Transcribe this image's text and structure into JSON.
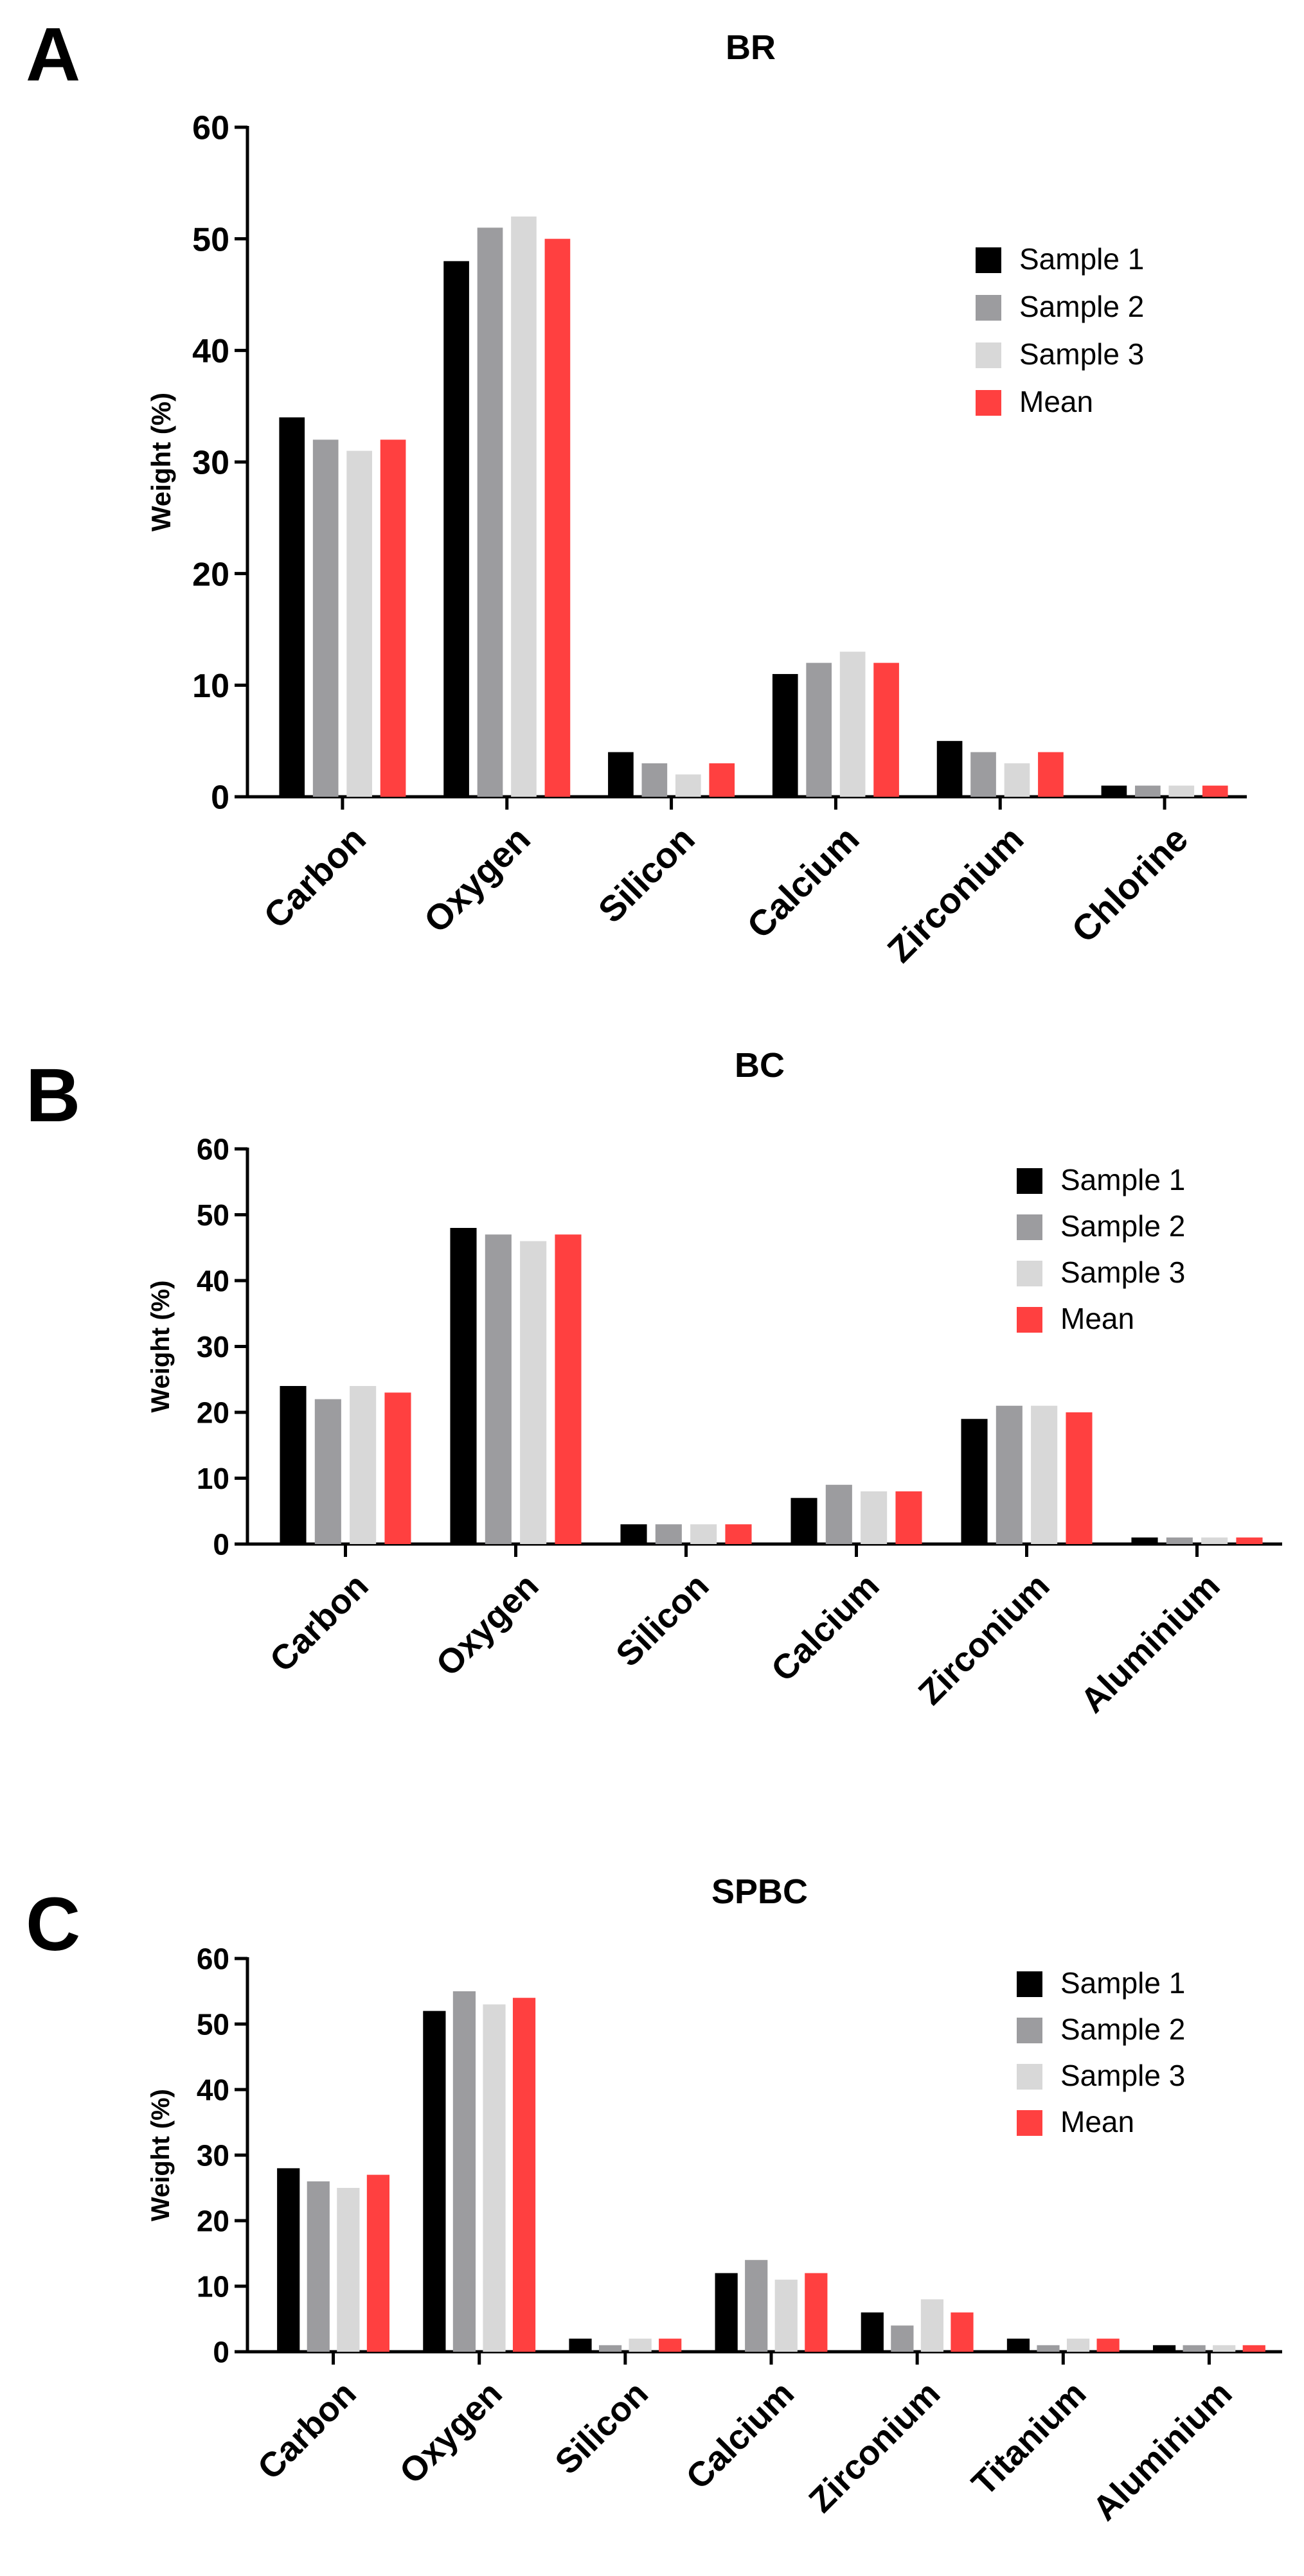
{
  "figure": {
    "panels": [
      "A",
      "B",
      "C"
    ]
  },
  "legend": {
    "entries": [
      "Sample 1",
      "Sample 2",
      "Sample 3",
      "Mean"
    ],
    "colors": [
      "#000000",
      "#9c9c9f",
      "#d8d8d8",
      "#ff4040"
    ]
  },
  "chart_data": [
    {
      "panel": "A",
      "type": "bar",
      "title": "BR",
      "xlabel": "",
      "ylabel": "Weight (%)",
      "ylim": [
        0,
        60
      ],
      "yticks": [
        0,
        10,
        20,
        30,
        40,
        50,
        60
      ],
      "grid": false,
      "legend_position": "top-right",
      "categories": [
        "Carbon",
        "Oxygen",
        "Silicon",
        "Calcium",
        "Zirconium",
        "Chlorine"
      ],
      "series": [
        {
          "name": "Sample 1",
          "values": [
            34,
            48,
            4,
            11,
            5,
            1
          ]
        },
        {
          "name": "Sample 2",
          "values": [
            32,
            51,
            3,
            12,
            4,
            1
          ]
        },
        {
          "name": "Sample 3",
          "values": [
            31,
            52,
            2,
            13,
            3,
            1
          ]
        },
        {
          "name": "Mean",
          "values": [
            32,
            50,
            3,
            12,
            4,
            1
          ]
        }
      ]
    },
    {
      "panel": "B",
      "type": "bar",
      "title": "BC",
      "xlabel": "",
      "ylabel": "Weight (%)",
      "ylim": [
        0,
        60
      ],
      "yticks": [
        0,
        10,
        20,
        30,
        40,
        50,
        60
      ],
      "grid": false,
      "legend_position": "top-right",
      "categories": [
        "Carbon",
        "Oxygen",
        "Silicon",
        "Calcium",
        "Zirconium",
        "Aluminium"
      ],
      "series": [
        {
          "name": "Sample 1",
          "values": [
            24,
            48,
            3,
            7,
            19,
            1
          ]
        },
        {
          "name": "Sample 2",
          "values": [
            22,
            47,
            3,
            9,
            21,
            1
          ]
        },
        {
          "name": "Sample 3",
          "values": [
            24,
            46,
            3,
            8,
            21,
            1
          ]
        },
        {
          "name": "Mean",
          "values": [
            23,
            47,
            3,
            8,
            20,
            1
          ]
        }
      ]
    },
    {
      "panel": "C",
      "type": "bar",
      "title": "SPBC",
      "xlabel": "",
      "ylabel": "Weight (%)",
      "ylim": [
        0,
        60
      ],
      "yticks": [
        0,
        10,
        20,
        30,
        40,
        50,
        60
      ],
      "grid": false,
      "legend_position": "top-right",
      "categories": [
        "Carbon",
        "Oxygen",
        "Silicon",
        "Calcium",
        "Zirconium",
        "Titanium",
        "Aluminium"
      ],
      "series": [
        {
          "name": "Sample 1",
          "values": [
            28,
            52,
            2,
            12,
            6,
            2,
            1
          ]
        },
        {
          "name": "Sample 2",
          "values": [
            26,
            55,
            1,
            14,
            4,
            1,
            1
          ]
        },
        {
          "name": "Sample 3",
          "values": [
            25,
            53,
            2,
            11,
            8,
            2,
            1
          ]
        },
        {
          "name": "Mean",
          "values": [
            27,
            54,
            2,
            12,
            6,
            2,
            1
          ]
        }
      ]
    }
  ]
}
